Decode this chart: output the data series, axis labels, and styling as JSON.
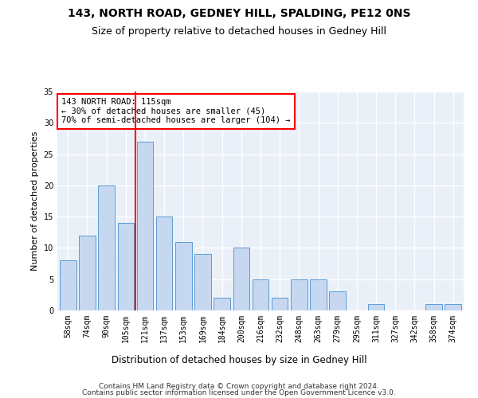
{
  "title1": "143, NORTH ROAD, GEDNEY HILL, SPALDING, PE12 0NS",
  "title2": "Size of property relative to detached houses in Gedney Hill",
  "xlabel": "Distribution of detached houses by size in Gedney Hill",
  "ylabel": "Number of detached properties",
  "categories": [
    "58sqm",
    "74sqm",
    "90sqm",
    "105sqm",
    "121sqm",
    "137sqm",
    "153sqm",
    "169sqm",
    "184sqm",
    "200sqm",
    "216sqm",
    "232sqm",
    "248sqm",
    "263sqm",
    "279sqm",
    "295sqm",
    "311sqm",
    "327sqm",
    "342sqm",
    "358sqm",
    "374sqm"
  ],
  "values": [
    8,
    12,
    20,
    14,
    27,
    15,
    11,
    9,
    2,
    10,
    5,
    2,
    5,
    5,
    3,
    0,
    1,
    0,
    0,
    1,
    1
  ],
  "bar_color": "#c5d8f0",
  "bar_edge_color": "#5b9bd5",
  "vline_index": 4,
  "vline_color": "red",
  "annotation_line1": "143 NORTH ROAD: 115sqm",
  "annotation_line2": "← 30% of detached houses are smaller (45)",
  "annotation_line3": "70% of semi-detached houses are larger (104) →",
  "annotation_box_color": "red",
  "ylim": [
    0,
    35
  ],
  "yticks": [
    0,
    5,
    10,
    15,
    20,
    25,
    30,
    35
  ],
  "background_color": "#eaf0f8",
  "grid_color": "#ffffff",
  "footer1": "Contains HM Land Registry data © Crown copyright and database right 2024.",
  "footer2": "Contains public sector information licensed under the Open Government Licence v3.0.",
  "title1_fontsize": 10,
  "title2_fontsize": 9,
  "xlabel_fontsize": 8.5,
  "ylabel_fontsize": 8,
  "tick_fontsize": 7,
  "footer_fontsize": 6.5,
  "ann_fontsize": 7.5
}
